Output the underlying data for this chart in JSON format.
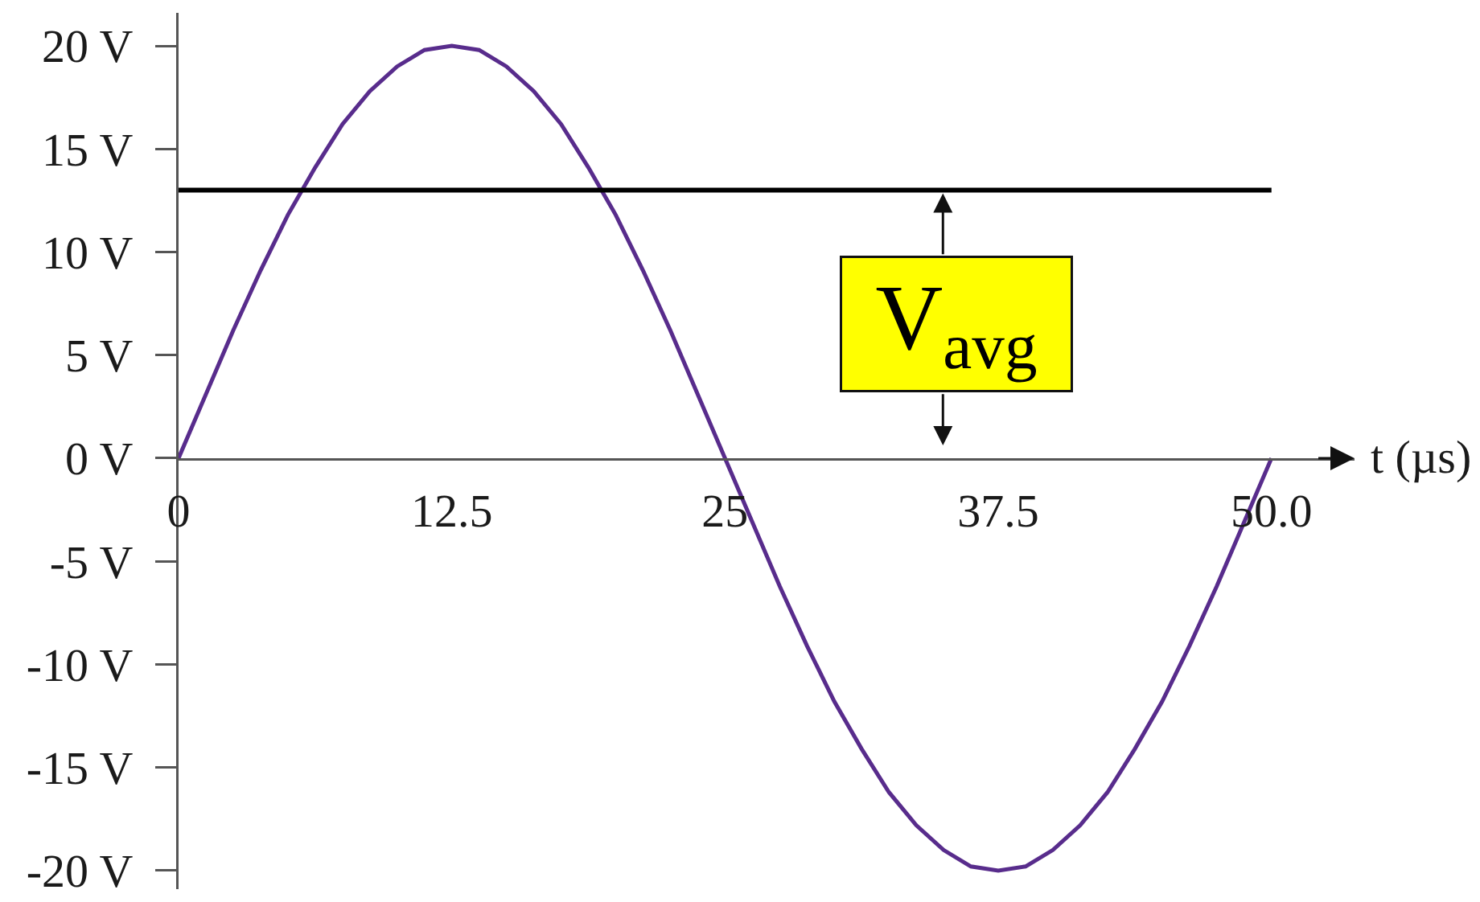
{
  "chart_data": {
    "type": "line",
    "xlabel": "t (µs)",
    "x": [
      0,
      1.25,
      2.5,
      3.75,
      5,
      6.25,
      7.5,
      8.75,
      10,
      11.25,
      12.5,
      13.75,
      15,
      16.25,
      17.5,
      18.75,
      20,
      21.25,
      22.5,
      23.75,
      25,
      26.25,
      27.5,
      28.75,
      30,
      31.25,
      32.5,
      33.75,
      35,
      36.25,
      37.5,
      38.75,
      40,
      41.25,
      42.5,
      43.75,
      45,
      46.25,
      47.5,
      48.75,
      50
    ],
    "values": [
      0,
      3.1,
      6.2,
      9.1,
      11.8,
      14.1,
      16.2,
      17.8,
      19,
      19.8,
      20,
      19.8,
      19,
      17.8,
      16.2,
      14.1,
      11.8,
      9.1,
      6.2,
      3.1,
      0,
      -3.1,
      -6.2,
      -9.1,
      -11.8,
      -14.1,
      -16.2,
      -17.8,
      -19,
      -19.8,
      -20,
      -19.8,
      -19,
      -17.8,
      -16.2,
      -14.1,
      -11.8,
      -9.1,
      -6.2,
      -3.1,
      0
    ],
    "color": "#582c8c",
    "xlim": [
      0,
      53.8
    ],
    "xticks": [
      0,
      12.5,
      25,
      37.5,
      {
        "value": 50,
        "label": "50.0"
      }
    ],
    "ylim": [
      -20.9,
      21.6
    ],
    "yticks": [
      {
        "value": 20,
        "label": "20 V"
      },
      {
        "value": 15,
        "label": "15 V"
      },
      {
        "value": 10,
        "label": "10 V"
      },
      {
        "value": 5,
        "label": "5 V"
      },
      {
        "value": 0,
        "label": "0 V"
      },
      {
        "value": -5,
        "label": "-5 V"
      },
      {
        "value": -10,
        "label": "-10 V"
      },
      {
        "value": -15,
        "label": "-15 V"
      },
      {
        "value": -20,
        "label": "-20 V"
      }
    ],
    "ref_lines": [
      {
        "axis": "y",
        "value": 13,
        "label": "V$_{avg}$",
        "color": "#000000"
      }
    ]
  }
}
